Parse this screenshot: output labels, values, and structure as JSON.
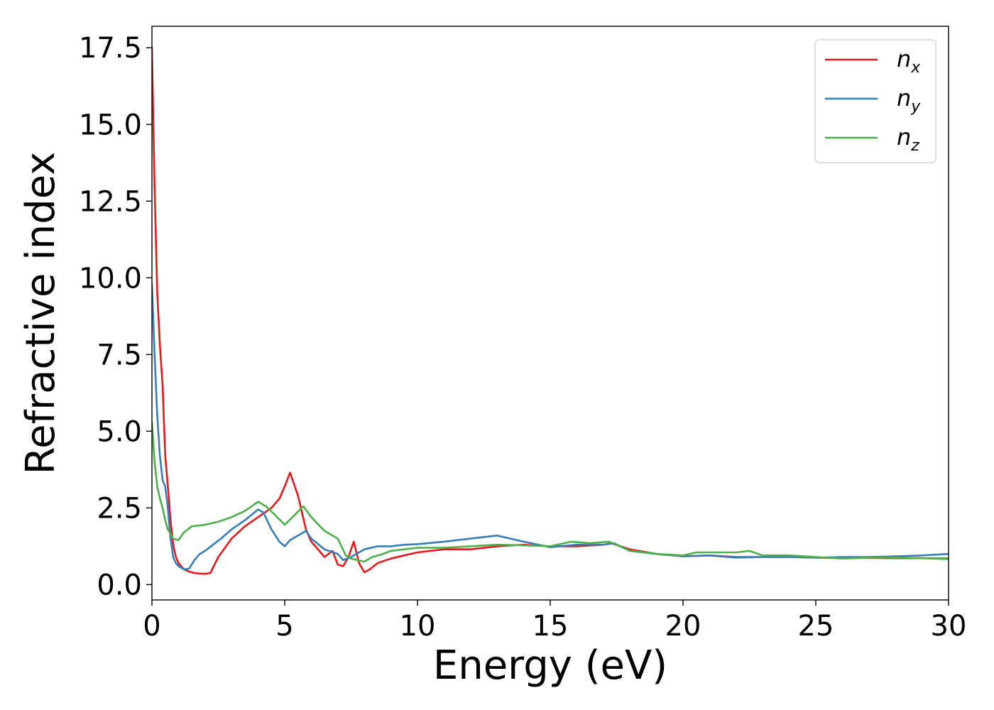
{
  "colors": {
    "n_x": "#e41a1c",
    "n_y": "#377eb8",
    "n_z": "#4daf4a",
    "axes": "#000000",
    "background": "#ffffff"
  },
  "chart_data": {
    "type": "line",
    "title": "",
    "xlabel": "Energy (eV)",
    "ylabel": "Refractive index",
    "xlim": [
      0,
      30
    ],
    "ylim": [
      -0.5,
      18.2
    ],
    "xticks": [
      "0",
      "5",
      "10",
      "15",
      "20",
      "25",
      "30"
    ],
    "yticks": [
      "0.0",
      "2.5",
      "5.0",
      "7.5",
      "10.0",
      "12.5",
      "15.0",
      "17.5"
    ],
    "grid": false,
    "legend_position": "top-right",
    "series": [
      {
        "name": "n_x",
        "label_base": "n",
        "label_sub": "x",
        "color": "#e41a1c",
        "x": [
          0,
          0.1,
          0.2,
          0.3,
          0.4,
          0.5,
          0.6,
          0.7,
          0.8,
          0.9,
          1.0,
          1.2,
          1.4,
          1.6,
          1.8,
          2.0,
          2.2,
          2.5,
          3.0,
          3.5,
          4.0,
          4.5,
          4.8,
          5.0,
          5.2,
          5.5,
          5.8,
          6.0,
          6.5,
          6.8,
          7.0,
          7.2,
          7.4,
          7.6,
          7.8,
          8.0,
          8.2,
          8.5,
          9.0,
          9.5,
          10,
          11,
          12,
          13,
          14,
          15,
          16,
          17,
          17.3,
          18,
          19,
          20,
          21,
          22,
          23,
          24,
          25,
          26,
          27,
          28,
          29,
          30
        ],
        "y": [
          17.5,
          13.0,
          9.5,
          7.8,
          6.5,
          4.2,
          3.2,
          2.1,
          1.3,
          0.9,
          0.7,
          0.5,
          0.42,
          0.38,
          0.36,
          0.35,
          0.38,
          0.9,
          1.5,
          1.9,
          2.2,
          2.5,
          2.8,
          3.2,
          3.65,
          2.9,
          1.8,
          1.4,
          0.9,
          1.1,
          0.65,
          0.6,
          0.9,
          1.4,
          0.7,
          0.4,
          0.5,
          0.7,
          0.85,
          0.95,
          1.05,
          1.15,
          1.15,
          1.25,
          1.3,
          1.25,
          1.25,
          1.3,
          1.35,
          1.15,
          1.0,
          0.92,
          0.95,
          0.9,
          0.9,
          0.9,
          0.88,
          0.87,
          0.87,
          0.86,
          0.86,
          0.85
        ]
      },
      {
        "name": "n_y",
        "label_base": "n",
        "label_sub": "y",
        "color": "#377eb8",
        "x": [
          0,
          0.1,
          0.2,
          0.3,
          0.4,
          0.5,
          0.6,
          0.7,
          0.8,
          0.9,
          1.0,
          1.2,
          1.4,
          1.6,
          1.8,
          2.0,
          2.3,
          2.6,
          3.0,
          3.5,
          4.0,
          4.2,
          4.5,
          4.8,
          5.0,
          5.2,
          5.5,
          5.8,
          6.0,
          6.5,
          7.0,
          7.2,
          7.5,
          8.0,
          8.5,
          9.0,
          9.5,
          10,
          11,
          12,
          13,
          13.5,
          14,
          15,
          16,
          17,
          17.4,
          18,
          19,
          20,
          21,
          22,
          23,
          24,
          25,
          26,
          27,
          28,
          29,
          30
        ],
        "y": [
          9.8,
          7.5,
          5.5,
          4.2,
          3.4,
          3.2,
          2.5,
          1.5,
          0.9,
          0.7,
          0.6,
          0.5,
          0.52,
          0.8,
          1.0,
          1.1,
          1.3,
          1.5,
          1.8,
          2.1,
          2.45,
          2.35,
          1.8,
          1.4,
          1.25,
          1.45,
          1.6,
          1.75,
          1.5,
          1.15,
          1.0,
          0.8,
          0.9,
          1.15,
          1.25,
          1.25,
          1.3,
          1.32,
          1.4,
          1.5,
          1.6,
          1.5,
          1.4,
          1.22,
          1.3,
          1.3,
          1.35,
          1.1,
          1.0,
          0.92,
          0.95,
          0.88,
          0.9,
          0.9,
          0.88,
          0.9,
          0.9,
          0.92,
          0.95,
          1.0
        ]
      },
      {
        "name": "n_z",
        "label_base": "n",
        "label_sub": "z",
        "color": "#4daf4a",
        "x": [
          0,
          0.1,
          0.2,
          0.3,
          0.4,
          0.5,
          0.6,
          0.8,
          1.0,
          1.2,
          1.5,
          2.0,
          2.5,
          3.0,
          3.5,
          4.0,
          4.3,
          4.6,
          5.0,
          5.3,
          5.7,
          6.0,
          6.5,
          7.0,
          7.3,
          7.5,
          8.0,
          8.3,
          8.7,
          9.0,
          9.5,
          10,
          11,
          12,
          13,
          14,
          15,
          15.8,
          16.5,
          17.2,
          17.5,
          18,
          19,
          20,
          20.5,
          21,
          22,
          22.5,
          23,
          24,
          25,
          26,
          27,
          28,
          29,
          30
        ],
        "y": [
          5.3,
          4.0,
          3.2,
          2.8,
          2.5,
          2.1,
          1.8,
          1.5,
          1.45,
          1.7,
          1.9,
          1.95,
          2.05,
          2.2,
          2.4,
          2.7,
          2.55,
          2.3,
          1.95,
          2.2,
          2.55,
          2.2,
          1.75,
          1.5,
          0.95,
          0.85,
          0.75,
          0.9,
          1.0,
          1.1,
          1.15,
          1.2,
          1.2,
          1.25,
          1.3,
          1.28,
          1.25,
          1.4,
          1.35,
          1.4,
          1.3,
          1.1,
          1.0,
          0.95,
          1.05,
          1.05,
          1.05,
          1.1,
          0.95,
          0.95,
          0.9,
          0.85,
          0.88,
          0.88,
          0.86,
          0.83
        ]
      }
    ]
  }
}
